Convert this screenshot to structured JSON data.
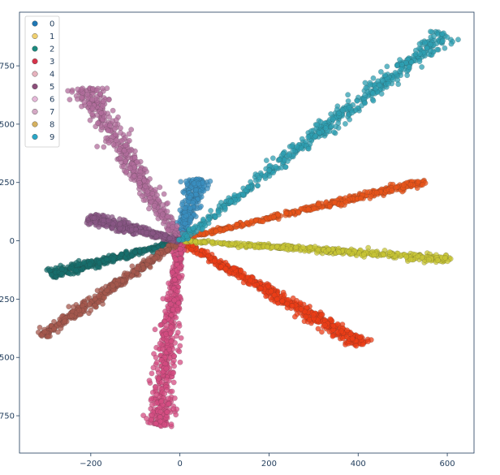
{
  "chart_data": {
    "type": "scatter",
    "title": "",
    "xlabel": "",
    "ylabel": "",
    "xlim": [
      -360,
      660
    ],
    "ylim": [
      -910,
      980
    ],
    "x_ticks": [
      -200,
      0,
      200,
      400,
      600
    ],
    "y_ticks": [
      750,
      500,
      250,
      0,
      -250,
      -500,
      -750
    ],
    "x_tick_labels": [
      "−200",
      "0",
      "200",
      "400",
      "600"
    ],
    "y_tick_labels": [
      "750",
      "500",
      "250",
      "0",
      "−250",
      "−500",
      "−750"
    ],
    "grid": false,
    "legend": "top-left",
    "series": [
      {
        "name": "0",
        "color": "#1f77b4",
        "marker_color": "#3a8fc0",
        "start": [
          0,
          0
        ],
        "end": [
          40,
          265
        ],
        "spread": 10,
        "count": 260
      },
      {
        "name": "1",
        "color": "#f0d070",
        "marker_color": "#e8541a",
        "start": [
          10,
          10
        ],
        "end": [
          550,
          255
        ],
        "spread": 6,
        "count": 420
      },
      {
        "name": "2",
        "color": "#1b8a7e",
        "marker_color": "#176f6c",
        "start": [
          0,
          0
        ],
        "end": [
          -290,
          -145
        ],
        "spread": 8,
        "count": 360
      },
      {
        "name": "3",
        "color": "#d6334a",
        "marker_color": "#ec3e17",
        "start": [
          0,
          0
        ],
        "end": [
          410,
          -445
        ],
        "spread": 10,
        "count": 520
      },
      {
        "name": "4",
        "color": "#e6b2bd",
        "marker_color": "#d44c82",
        "start": [
          0,
          0
        ],
        "end": [
          -50,
          -795
        ],
        "spread": 12,
        "count": 520
      },
      {
        "name": "5",
        "color": "#8c4f7a",
        "marker_color": "#a5584e",
        "start": [
          0,
          0
        ],
        "end": [
          -310,
          -410
        ],
        "spread": 8,
        "count": 420
      },
      {
        "name": "6",
        "color": "#e5b7d8",
        "marker_color": "#b16d9c",
        "start": [
          0,
          0
        ],
        "end": [
          -215,
          655
        ],
        "spread": 14,
        "count": 460
      },
      {
        "name": "7",
        "color": "#d4a8c4",
        "marker_color": "#8a5785",
        "start": [
          0,
          0
        ],
        "end": [
          -205,
          100
        ],
        "spread": 10,
        "count": 320
      },
      {
        "name": "8",
        "color": "#d5b160",
        "marker_color": "#c8c535",
        "start": [
          10,
          0
        ],
        "end": [
          608,
          -78
        ],
        "spread": 6,
        "count": 480
      },
      {
        "name": "9",
        "color": "#2aa6c6",
        "marker_color": "#2e9fb2",
        "start": [
          0,
          0
        ],
        "end": [
          600,
          890
        ],
        "spread": 12,
        "count": 560
      }
    ]
  }
}
